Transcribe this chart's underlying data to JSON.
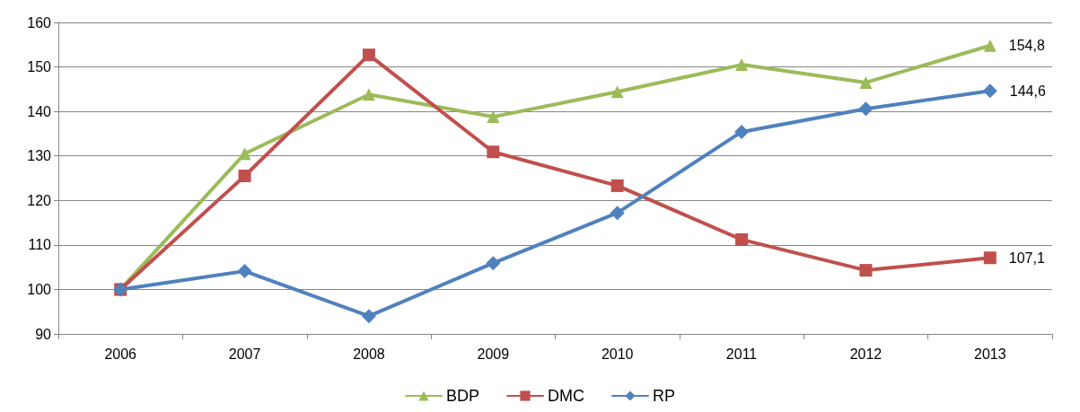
{
  "chart_data": {
    "type": "line",
    "categories": [
      "2006",
      "2007",
      "2008",
      "2009",
      "2010",
      "2011",
      "2012",
      "2013"
    ],
    "series": [
      {
        "name": "BDP",
        "color": "#9bbb59",
        "marker": "triangle",
        "values": [
          100,
          130.5,
          143.8,
          138.8,
          144.4,
          150.5,
          146.5,
          154.8
        ],
        "value_labels": [
          null,
          null,
          null,
          null,
          null,
          null,
          null,
          "154,8"
        ]
      },
      {
        "name": "DMC",
        "color": "#c0504d",
        "marker": "square",
        "values": [
          100,
          125.5,
          152.7,
          130.9,
          123.3,
          111.2,
          104.3,
          107.1
        ],
        "value_labels": [
          null,
          null,
          null,
          null,
          null,
          null,
          null,
          "107,1"
        ]
      },
      {
        "name": "RP",
        "color": "#4f81bd",
        "marker": "diamond",
        "values": [
          100,
          104.1,
          94.0,
          105.9,
          117.2,
          135.4,
          140.6,
          144.6
        ],
        "value_labels": [
          null,
          null,
          null,
          null,
          null,
          null,
          null,
          "144,6"
        ]
      }
    ],
    "ylim": [
      90,
      160
    ],
    "yticks": [
      90,
      100,
      110,
      120,
      130,
      140,
      150,
      160
    ],
    "grid": "y",
    "legend": "bottom",
    "line_style": "solid"
  }
}
